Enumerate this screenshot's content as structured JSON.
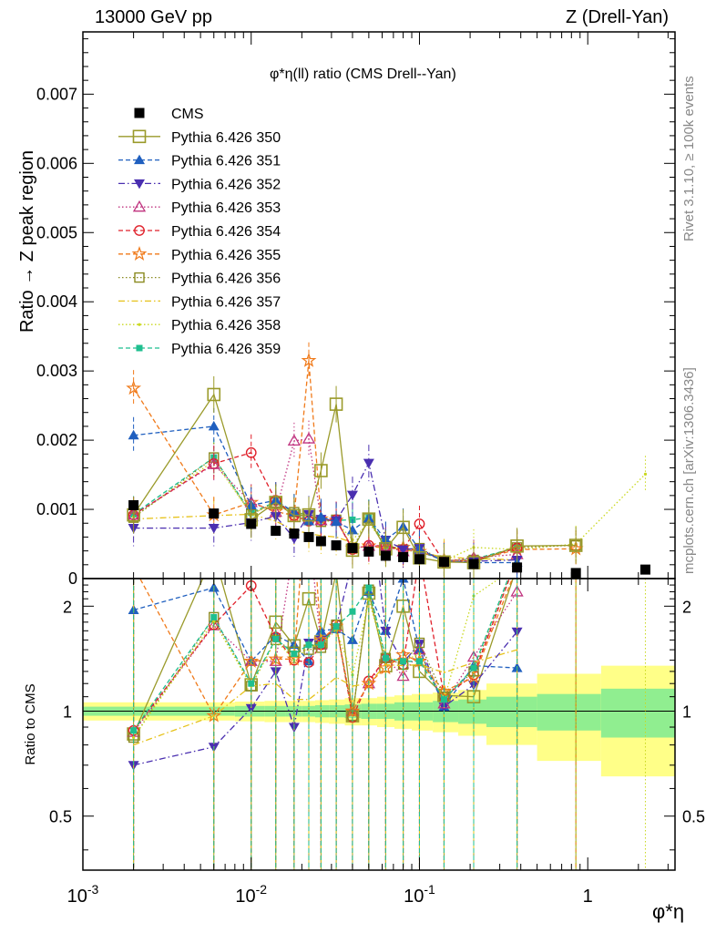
{
  "header": {
    "left": "13000 GeV pp",
    "right": "Z (Drell-Yan)"
  },
  "side_labels": {
    "rivet": "Rivet 3.1.10, ≥ 100k events",
    "mcplots": "mcplots.cern.ch [arXiv:1306.3436]"
  },
  "chart_data": [
    {
      "type": "scatter",
      "title": "φ*η(ll) ratio (CMS Drell--Yan)",
      "ylabel": "Ratio → Z peak region",
      "xlabel": "φ*η",
      "xscale": "log",
      "xlim": [
        0.001,
        3.3
      ],
      "ylim": [
        0,
        0.0079
      ],
      "yticks": [
        "0",
        "0.001",
        "0.002",
        "0.003",
        "0.004",
        "0.005",
        "0.006",
        "0.007"
      ],
      "xticks": [
        "10^-3",
        "10^-2",
        "10^-1",
        "1"
      ],
      "legend_position": "top-left",
      "series": [
        {
          "name": "CMS",
          "color": "#000000",
          "marker": "square-filled",
          "line": "none",
          "x": [
            0.002,
            0.006,
            0.01,
            0.014,
            0.018,
            0.022,
            0.026,
            0.032,
            0.04,
            0.05,
            0.063,
            0.08,
            0.1,
            0.14,
            0.21,
            0.38,
            0.85,
            2.2
          ],
          "y": [
            0.00106,
            0.00094,
            0.00079,
            0.00069,
            0.00065,
            0.0006,
            0.00054,
            0.00048,
            0.00044,
            0.00039,
            0.00033,
            0.00031,
            0.00028,
            0.00024,
            0.00021,
            0.00016,
            8e-05,
            0.00013
          ]
        },
        {
          "name": "Pythia 6.426 350",
          "color": "#9a9a2a",
          "marker": "square-open",
          "line": "solid",
          "x": [
            0.002,
            0.006,
            0.01,
            0.014,
            0.018,
            0.022,
            0.026,
            0.032,
            0.04,
            0.05,
            0.063,
            0.08,
            0.1,
            0.14,
            0.21,
            0.38,
            0.85
          ],
          "y": [
            0.00092,
            0.00266,
            0.00085,
            0.0011,
            0.00091,
            0.00092,
            0.00156,
            0.00252,
            0.00041,
            0.00086,
            0.00043,
            0.00074,
            0.0003,
            0.00024,
            0.00023,
            0.00047,
            0.00048
          ]
        },
        {
          "name": "Pythia 6.426 351",
          "color": "#1f5fbf",
          "marker": "triangle-up-filled",
          "line": "dashed",
          "x": [
            0.002,
            0.006,
            0.01,
            0.014,
            0.018,
            0.022,
            0.026,
            0.032,
            0.04,
            0.05,
            0.063,
            0.08,
            0.1,
            0.14,
            0.21,
            0.38
          ],
          "y": [
            0.00207,
            0.0022,
            0.00106,
            0.00113,
            0.00096,
            0.00083,
            0.00089,
            0.00082,
            0.0007,
            0.00087,
            0.00056,
            0.00075,
            0.00042,
            0.00025,
            0.00023,
            0.00023
          ]
        },
        {
          "name": "Pythia 6.426 352",
          "color": "#4a2fb0",
          "marker": "triangle-down-filled",
          "line": "dashdot",
          "x": [
            0.002,
            0.006,
            0.01,
            0.014,
            0.018,
            0.022,
            0.026,
            0.032,
            0.04,
            0.05,
            0.063,
            0.08,
            0.1,
            0.14,
            0.21,
            0.38
          ],
          "y": [
            0.00073,
            0.00073,
            0.00081,
            0.0009,
            0.00058,
            0.00093,
            0.00086,
            0.00084,
            0.00121,
            0.00167,
            0.00056,
            0.00042,
            0.00044,
            0.00024,
            0.00025,
            0.00027
          ]
        },
        {
          "name": "Pythia 6.426 353",
          "color": "#c0337f",
          "marker": "triangle-up-open",
          "line": "dotted",
          "x": [
            0.002,
            0.006,
            0.01,
            0.014,
            0.018,
            0.022,
            0.026,
            0.032,
            0.04,
            0.05,
            0.063,
            0.08,
            0.1,
            0.14,
            0.21,
            0.38
          ],
          "y": [
            0.00092,
            0.00165,
            0.0011,
            0.00096,
            0.00199,
            0.00202,
            0.00084,
            0.00084,
            0.00044,
            0.00047,
            0.00047,
            0.00039,
            0.00042,
            0.00025,
            0.0003,
            0.00035
          ]
        },
        {
          "name": "Pythia 6.426 354",
          "color": "#e0202a",
          "marker": "circle-open",
          "line": "dashed",
          "x": [
            0.002,
            0.006,
            0.01,
            0.014,
            0.018,
            0.022,
            0.026,
            0.032,
            0.04,
            0.05,
            0.063,
            0.08,
            0.1,
            0.14,
            0.21,
            0.38
          ],
          "y": [
            0.00092,
            0.00166,
            0.00182,
            0.00113,
            0.00091,
            0.00083,
            0.00084,
            0.00085,
            0.00042,
            0.00048,
            0.00047,
            0.00042,
            0.00079,
            0.00024,
            0.00026,
            0.00044
          ]
        },
        {
          "name": "Pythia 6.426 355",
          "color": "#f07a1a",
          "marker": "star-open",
          "line": "dashed",
          "x": [
            0.002,
            0.006,
            0.01,
            0.014,
            0.018,
            0.022,
            0.026,
            0.032,
            0.04,
            0.05,
            0.063,
            0.08,
            0.1,
            0.14,
            0.21,
            0.38,
            0.85
          ],
          "y": [
            0.00275,
            0.00092,
            0.0011,
            0.00097,
            0.00091,
            0.00315,
            0.00086,
            0.00084,
            0.00044,
            0.00047,
            0.00044,
            0.00045,
            0.00039,
            0.00027,
            0.00026,
            0.00042,
            0.00043
          ]
        },
        {
          "name": "Pythia 6.426 356",
          "color": "#8a8a20",
          "marker": "square-open-small",
          "line": "dotted",
          "x": [
            0.002,
            0.006,
            0.01,
            0.014,
            0.018,
            0.022,
            0.026,
            0.032,
            0.04,
            0.05,
            0.063,
            0.08,
            0.1,
            0.14,
            0.21,
            0.38,
            0.85
          ],
          "y": [
            0.00088,
            0.00175,
            0.00093,
            0.0011,
            0.00096,
            0.0009,
            0.00082,
            0.00085,
            0.00044,
            0.00087,
            0.00047,
            0.00042,
            0.00044,
            0.00026,
            0.00027,
            0.00045,
            0.00048
          ]
        },
        {
          "name": "Pythia 6.426 357",
          "color": "#e6c21a",
          "marker": "none",
          "line": "dashdot",
          "x": [
            0.002,
            0.006,
            0.01,
            0.014,
            0.018,
            0.022,
            0.026,
            0.032,
            0.04,
            0.05,
            0.063,
            0.08,
            0.1,
            0.14,
            0.21,
            0.38
          ],
          "y": [
            0.00086,
            0.00091,
            0.00093,
            0.00083,
            0.0007,
            0.00065,
            0.00062,
            0.0006,
            0.00052,
            0.00047,
            0.00045,
            0.00042,
            0.00038,
            0.00031,
            0.00029,
            0.00027
          ]
        },
        {
          "name": "Pythia 6.426 358",
          "color": "#c9d81e",
          "marker": "dot",
          "line": "dotted",
          "x": [
            0.002,
            0.006,
            0.01,
            0.014,
            0.018,
            0.022,
            0.026,
            0.032,
            0.04,
            0.05,
            0.063,
            0.08,
            0.1,
            0.14,
            0.21,
            0.38,
            0.85,
            2.2
          ],
          "y": [
            0.00089,
            0.0017,
            0.00093,
            0.0011,
            0.00091,
            0.00092,
            0.00084,
            0.00082,
            0.00056,
            0.00081,
            0.00047,
            0.00043,
            0.00041,
            0.00026,
            0.00045,
            0.00042,
            0.0005,
            0.00151
          ]
        },
        {
          "name": "Pythia 6.426 359",
          "color": "#1fbf8f",
          "marker": "square-filled-small",
          "line": "dashed",
          "x": [
            0.002,
            0.006,
            0.01,
            0.014,
            0.018,
            0.022,
            0.026,
            0.032,
            0.04,
            0.05,
            0.063,
            0.08,
            0.1,
            0.14,
            0.21,
            0.38
          ],
          "y": [
            0.00093,
            0.00175,
            0.00095,
            0.00111,
            0.00095,
            0.00093,
            0.00084,
            0.00084,
            0.00085,
            0.00088,
            0.00047,
            0.00043,
            0.00039,
            0.00026,
            0.00028,
            0.00045
          ]
        }
      ]
    },
    {
      "type": "scatter",
      "ylabel": "Ratio to CMS",
      "xscale": "log",
      "yscale": "log",
      "ylim": [
        0.35,
        2.4
      ],
      "yticks": [
        "0.5",
        "1",
        "2"
      ],
      "reference_line": 1,
      "band_inner_color": "#90ee90",
      "band_outer_color": "#ffff88",
      "band_x_edges": [
        0.001,
        0.0035,
        0.008,
        0.012,
        0.016,
        0.02,
        0.024,
        0.029,
        0.036,
        0.045,
        0.056,
        0.071,
        0.09,
        0.12,
        0.17,
        0.25,
        0.5,
        1.2,
        3.3
      ],
      "band_inner": [
        0.03,
        0.03,
        0.035,
        0.035,
        0.035,
        0.035,
        0.04,
        0.04,
        0.045,
        0.05,
        0.05,
        0.06,
        0.06,
        0.07,
        0.08,
        0.1,
        0.12,
        0.16
      ],
      "band_outer": [
        0.06,
        0.06,
        0.065,
        0.07,
        0.07,
        0.07,
        0.075,
        0.08,
        0.09,
        0.09,
        0.1,
        0.11,
        0.12,
        0.13,
        0.15,
        0.2,
        0.28,
        0.35
      ],
      "ratio_series": [
        {
          "name": "Pythia 6.426 350",
          "y": [
            0.86,
            2.83,
            1.19,
            1.8,
            1.54,
            2.1,
            1.58,
            2.5,
            0.97,
            2.18,
            1.35,
            2.0,
            1.3,
            1.11,
            1.1,
            2.6,
            5.5
          ]
        },
        {
          "name": "Pythia 6.426 351",
          "y": [
            1.95,
            2.26,
            1.39,
            1.65,
            1.55,
            1.39,
            1.7,
            1.72,
            1.6,
            2.2,
            1.7,
            2.4,
            1.5,
            1.03,
            1.35,
            1.33
          ]
        },
        {
          "name": "Pythia 6.426 352",
          "y": [
            0.7,
            0.79,
            1.02,
            1.3,
            0.9,
            1.57,
            1.6,
            1.74,
            2.7,
            4.2,
            1.7,
            1.38,
            1.56,
            1.03,
            1.19,
            1.69
          ]
        },
        {
          "name": "Pythia 6.426 353",
          "y": [
            0.87,
            1.76,
            1.39,
            1.39,
            3.0,
            3.35,
            1.55,
            1.75,
            1.0,
            1.2,
            1.42,
            1.26,
            1.5,
            1.05,
            1.43,
            2.2
          ]
        },
        {
          "name": "Pythia 6.426 354",
          "y": [
            0.88,
            1.77,
            2.29,
            1.63,
            1.4,
            1.38,
            1.55,
            1.77,
            0.96,
            1.22,
            1.42,
            1.36,
            2.8,
            1.1,
            1.27,
            2.75
          ]
        },
        {
          "name": "Pythia 6.426 355",
          "y": [
            2.6,
            0.97,
            1.39,
            1.41,
            1.41,
            5.2,
            1.6,
            1.75,
            1.0,
            1.2,
            1.33,
            1.45,
            1.39,
            1.14,
            1.25,
            2.6,
            5.4
          ]
        },
        {
          "name": "Pythia 6.426 356",
          "y": [
            0.84,
            1.86,
            1.18,
            1.6,
            1.48,
            1.5,
            1.52,
            1.77,
            0.97,
            2.23,
            1.42,
            1.36,
            1.57,
            1.1,
            1.3,
            2.8,
            6.0
          ]
        },
        {
          "name": "Pythia 6.426 357",
          "y": [
            0.8,
            0.97,
            1.18,
            1.2,
            1.08,
            1.08,
            1.15,
            1.25,
            1.18,
            1.2,
            1.36,
            1.35,
            1.36,
            1.29,
            1.38,
            1.5
          ]
        },
        {
          "name": "Pythia 6.426 358",
          "y": [
            0.84,
            1.81,
            1.18,
            1.6,
            1.4,
            1.53,
            1.55,
            1.71,
            1.27,
            2.08,
            1.42,
            1.39,
            1.46,
            1.08,
            2.14,
            2.6,
            6.2,
            11.6
          ]
        },
        {
          "name": "Pythia 6.426 359",
          "y": [
            0.88,
            1.86,
            1.2,
            1.61,
            1.46,
            1.55,
            1.55,
            1.75,
            1.93,
            2.26,
            1.42,
            1.39,
            1.39,
            1.08,
            1.33,
            2.8
          ]
        }
      ]
    }
  ]
}
